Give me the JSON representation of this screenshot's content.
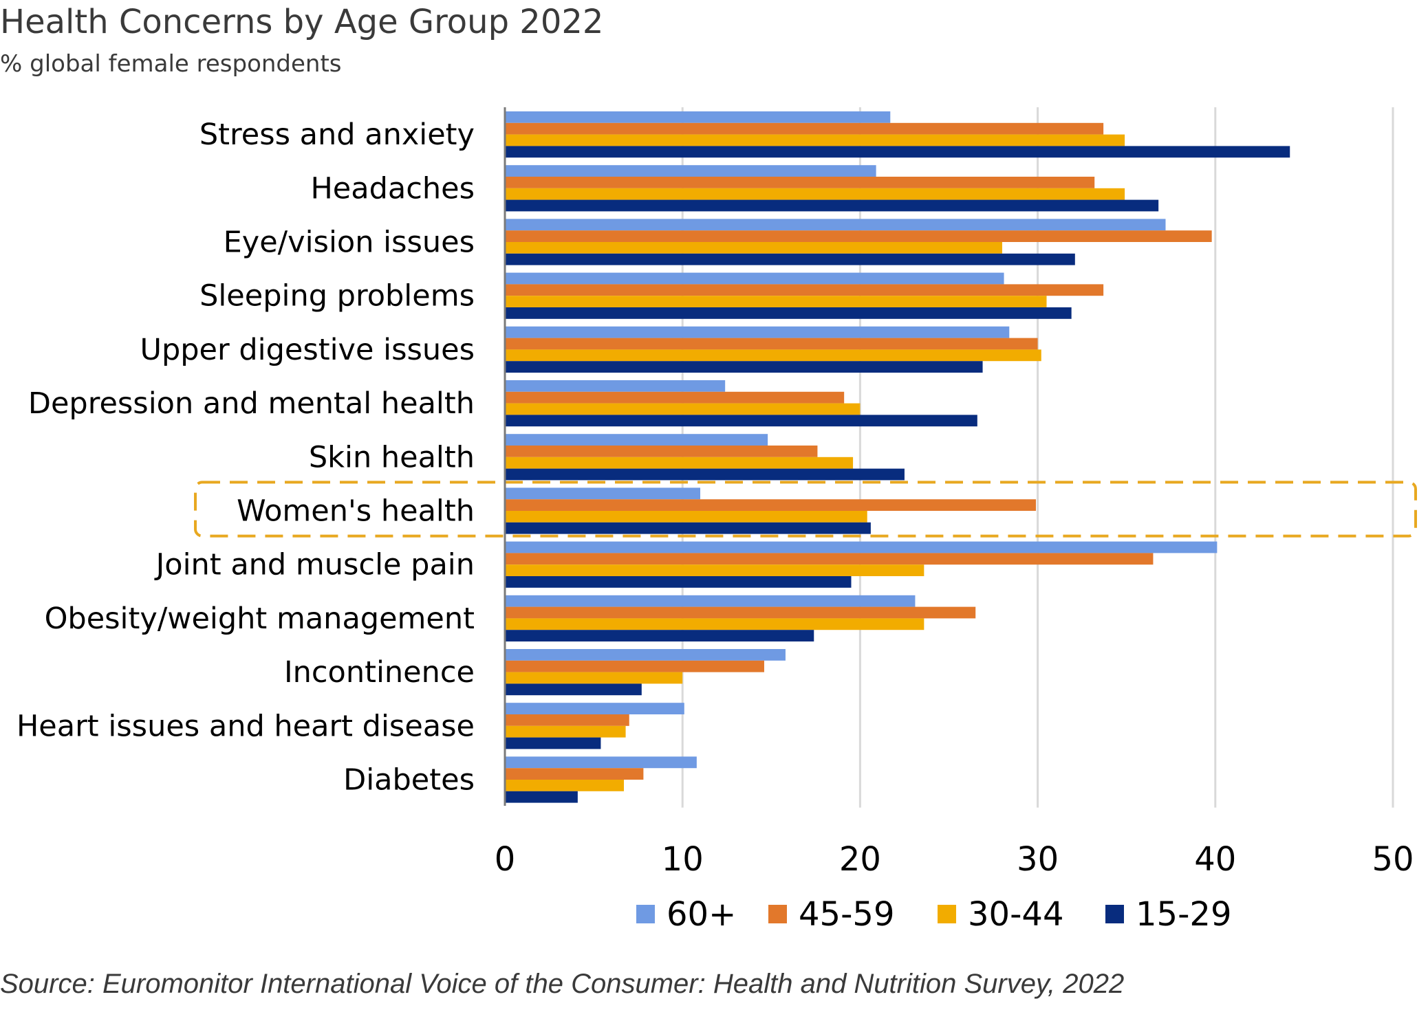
{
  "chart_data": {
    "type": "bar",
    "orientation": "horizontal",
    "title": "Health Concerns by Age Group 2022",
    "subtitle": "% global female respondents",
    "source": "Source: Euromonitor International Voice of the Consumer: Health and Nutrition Survey, 2022",
    "categories": [
      "Stress and anxiety",
      "Headaches",
      "Eye/vision issues",
      "Sleeping problems",
      "Upper digestive issues",
      "Depression and mental health",
      "Skin health",
      "Women's health",
      "Joint and muscle pain",
      "Obesity/weight management",
      "Incontinence",
      "Heart issues and heart disease",
      "Diabetes"
    ],
    "series": [
      {
        "name": "60+",
        "color": "#6f9ae3",
        "values": [
          21.7,
          20.9,
          37.2,
          28.1,
          28.4,
          12.4,
          14.8,
          11.0,
          40.1,
          23.1,
          15.8,
          10.1,
          10.8
        ]
      },
      {
        "name": "45-59",
        "color": "#e2782b",
        "values": [
          33.7,
          33.2,
          39.8,
          33.7,
          30.0,
          19.1,
          17.6,
          29.9,
          36.5,
          26.5,
          14.6,
          7.0,
          7.8
        ]
      },
      {
        "name": "30-44",
        "color": "#f2ac00",
        "values": [
          34.9,
          34.9,
          28.0,
          30.5,
          30.2,
          20.0,
          19.6,
          20.4,
          23.6,
          23.6,
          10.0,
          6.8,
          6.7
        ]
      },
      {
        "name": "15-29",
        "color": "#082c7e",
        "values": [
          44.2,
          36.8,
          32.1,
          31.9,
          26.9,
          26.6,
          22.5,
          20.6,
          19.5,
          17.4,
          7.7,
          5.4,
          4.1
        ]
      }
    ],
    "xlim": [
      0,
      50
    ],
    "xticks": [
      "0",
      "10",
      "20",
      "30",
      "40",
      "50"
    ],
    "grid": true,
    "legend": "bottom",
    "highlight": {
      "category": "Women's health",
      "style": "dashed-box",
      "color": "#e8a820"
    }
  }
}
